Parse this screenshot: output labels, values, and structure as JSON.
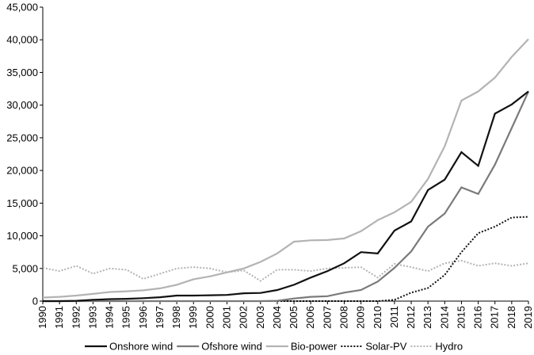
{
  "chart_data": {
    "type": "line",
    "title": "",
    "xlabel": "",
    "ylabel": "",
    "ylim": [
      0,
      45000
    ],
    "yticks": [
      0,
      5000,
      10000,
      15000,
      20000,
      25000,
      30000,
      35000,
      40000,
      45000
    ],
    "ytick_labels": [
      "0",
      "5,000",
      "10,000",
      "15,000",
      "20,000",
      "25,000",
      "30,000",
      "35,000",
      "40,000",
      "45,000"
    ],
    "grid": false,
    "legend_position": "bottom",
    "x": [
      "1990",
      "1991",
      "1992",
      "1993",
      "1994",
      "1995",
      "1996",
      "1997",
      "1998",
      "1999",
      "2000",
      "2001",
      "2002",
      "2003",
      "2004",
      "2005",
      "2006",
      "2007",
      "2008",
      "2009",
      "2010",
      "2011",
      "2012",
      "2013",
      "2014",
      "2015",
      "2016",
      "2017",
      "2018",
      "2019"
    ],
    "series": [
      {
        "name": "Onshore wind",
        "color": "#111111",
        "dash": "solid",
        "values": [
          0,
          0,
          50,
          200,
          300,
          350,
          450,
          600,
          850,
          850,
          900,
          950,
          1200,
          1250,
          1700,
          2500,
          3600,
          4600,
          5800,
          7500,
          7300,
          10800,
          12200,
          17000,
          18600,
          22800,
          20700,
          28700,
          30100,
          32100
        ]
      },
      {
        "name": "Ofshore wind",
        "color": "#7a7a7a",
        "dash": "solid",
        "values": [
          0,
          0,
          0,
          0,
          0,
          0,
          0,
          0,
          0,
          0,
          0,
          0,
          0,
          0,
          50,
          400,
          650,
          750,
          1300,
          1700,
          3000,
          5100,
          7600,
          11400,
          13400,
          17400,
          16400,
          20900,
          26500,
          32100
        ]
      },
      {
        "name": "Bio-power",
        "color": "#b3b3b3",
        "dash": "solid",
        "values": [
          550,
          650,
          850,
          1100,
          1400,
          1500,
          1650,
          1950,
          2500,
          3350,
          3800,
          4400,
          5000,
          6000,
          7300,
          9100,
          9300,
          9350,
          9600,
          10700,
          12400,
          13600,
          15200,
          18700,
          23700,
          30700,
          32100,
          34200,
          37400,
          40100
        ]
      },
      {
        "name": "Solar-PV",
        "color": "#111111",
        "dash": "dotted",
        "values": [
          0,
          0,
          0,
          0,
          0,
          0,
          0,
          0,
          0,
          0,
          0,
          0,
          0,
          0,
          0,
          0,
          0,
          0,
          0,
          0,
          0,
          200,
          1300,
          2000,
          4000,
          7500,
          10400,
          11400,
          12800,
          12900
        ]
      },
      {
        "name": "Hydro",
        "color": "#b3b3b3",
        "dash": "dotted",
        "values": [
          5100,
          4600,
          5400,
          4200,
          5000,
          4800,
          3400,
          4200,
          5000,
          5200,
          5000,
          4400,
          4700,
          3100,
          4800,
          4800,
          4600,
          5000,
          5100,
          5200,
          3600,
          5700,
          5200,
          4600,
          5800,
          6200,
          5400,
          5800,
          5400,
          5800
        ]
      }
    ]
  }
}
